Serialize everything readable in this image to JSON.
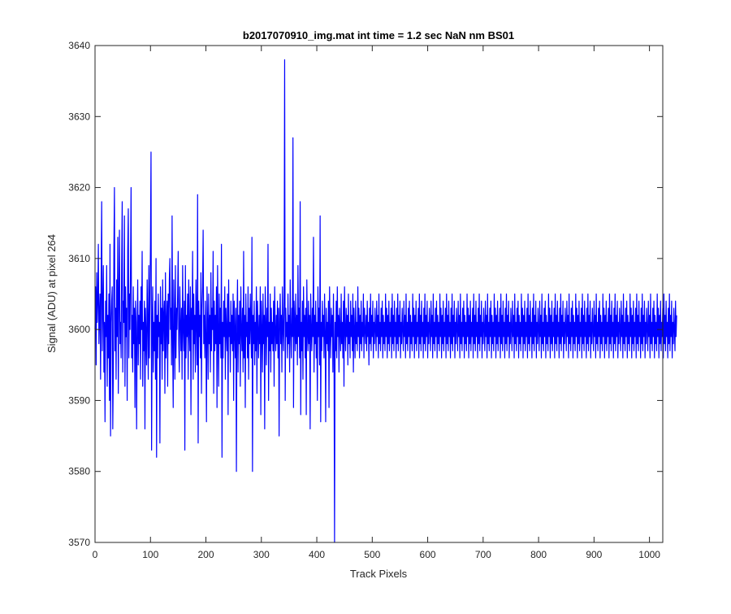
{
  "chart_data": {
    "type": "line",
    "title": "b2017070910_img.mat int time = 1.2 sec  NaN nm BS01",
    "xlabel": "Track Pixels",
    "ylabel": "Signal (ADU) at pixel 264",
    "xlim": [
      0,
      1024
    ],
    "ylim": [
      3570,
      3640
    ],
    "xticks": [
      0,
      100,
      200,
      300,
      400,
      500,
      600,
      700,
      800,
      900,
      1000
    ],
    "yticks": [
      3570,
      3580,
      3590,
      3600,
      3610,
      3620,
      3630,
      3640
    ],
    "grid": false,
    "line_color": "#0000ff",
    "series": [
      {
        "x_start": 0,
        "x_step": 1,
        "values": [
          3600,
          3606,
          3595,
          3608,
          3601,
          3604,
          3612,
          3598,
          3602,
          3605,
          3593,
          3607,
          3618,
          3597,
          3603,
          3609,
          3594,
          3601,
          3587,
          3604,
          3599,
          3609,
          3592,
          3602,
          3596,
          3605,
          3590,
          3612,
          3585,
          3601,
          3604,
          3606,
          3586,
          3594,
          3611,
          3620,
          3597,
          3603,
          3593,
          3607,
          3599,
          3613,
          3591,
          3605,
          3614,
          3598,
          3601,
          3596,
          3609,
          3618,
          3594,
          3604,
          3601,
          3616,
          3592,
          3606,
          3599,
          3603,
          3590,
          3611,
          3617,
          3596,
          3605,
          3600,
          3609,
          3620,
          3596,
          3602,
          3594,
          3606,
          3598,
          3603,
          3589,
          3604,
          3601,
          3586,
          3600,
          3607,
          3595,
          3602,
          3598,
          3604,
          3593,
          3606,
          3600,
          3611,
          3592,
          3601,
          3597,
          3604,
          3586,
          3603,
          3599,
          3595,
          3607,
          3601,
          3593,
          3609,
          3596,
          3604,
          3612,
          3625,
          3583,
          3600,
          3606,
          3594,
          3601,
          3597,
          3604,
          3593,
          3610,
          3582,
          3602,
          3596,
          3605,
          3599,
          3601,
          3584,
          3606,
          3598,
          3603,
          3593,
          3607,
          3597,
          3602,
          3604,
          3591,
          3608,
          3596,
          3601,
          3604,
          3592,
          3605,
          3598,
          3607,
          3610,
          3600,
          3603,
          3595,
          3616,
          3598,
          3589,
          3607,
          3601,
          3593,
          3609,
          3596,
          3603,
          3600,
          3605,
          3611,
          3598,
          3594,
          3606,
          3601,
          3597,
          3603,
          3593,
          3609,
          3600,
          3597,
          3604,
          3583,
          3609,
          3596,
          3602,
          3599,
          3605,
          3593,
          3607,
          3600,
          3597,
          3606,
          3588,
          3603,
          3600,
          3611,
          3593,
          3605,
          3598,
          3602,
          3594,
          3607,
          3601,
          3595,
          3619,
          3584,
          3604,
          3599,
          3602,
          3596,
          3608,
          3591,
          3603,
          3606,
          3614,
          3598,
          3602,
          3596,
          3604,
          3599,
          3587,
          3606,
          3601,
          3593,
          3605,
          3598,
          3602,
          3594,
          3608,
          3597,
          3603,
          3600,
          3611,
          3591,
          3604,
          3597,
          3602,
          3598,
          3606,
          3589,
          3609,
          3600,
          3592,
          3605,
          3598,
          3603,
          3596,
          3612,
          3582,
          3601,
          3596,
          3604,
          3599,
          3606,
          3593,
          3603,
          3600,
          3597,
          3605,
          3588,
          3607,
          3599,
          3601,
          3594,
          3604,
          3598,
          3602,
          3597,
          3605,
          3590,
          3604,
          3600,
          3596,
          3603,
          3580,
          3601,
          3607,
          3594,
          3602,
          3598,
          3604,
          3592,
          3606,
          3600,
          3597,
          3603,
          3594,
          3611,
          3596,
          3602,
          3589,
          3605,
          3599,
          3601,
          3596,
          3606,
          3593,
          3603,
          3598,
          3605,
          3600,
          3596,
          3613,
          3580,
          3602,
          3598,
          3604,
          3595,
          3601,
          3597,
          3606,
          3591,
          3604,
          3600,
          3596,
          3602,
          3598,
          3606,
          3588,
          3604,
          3600,
          3594,
          3605,
          3598,
          3602,
          3586,
          3606,
          3601,
          3595,
          3603,
          3599,
          3612,
          3590,
          3601,
          3597,
          3605,
          3594,
          3603,
          3598,
          3601,
          3597,
          3604,
          3592,
          3606,
          3600,
          3597,
          3602,
          3598,
          3604,
          3596,
          3603,
          3585,
          3601,
          3605,
          3598,
          3602,
          3594,
          3606,
          3600,
          3597,
          3604,
          3638,
          3590,
          3603,
          3599,
          3601,
          3596,
          3605,
          3598,
          3602,
          3594,
          3607,
          3600,
          3596,
          3603,
          3599,
          3627,
          3589,
          3604,
          3601,
          3597,
          3605,
          3598,
          3602,
          3595,
          3609,
          3599,
          3603,
          3596,
          3618,
          3588,
          3601,
          3597,
          3604,
          3593,
          3606,
          3599,
          3602,
          3596,
          3603,
          3588,
          3607,
          3600,
          3597,
          3604,
          3598,
          3602,
          3586,
          3605,
          3600,
          3597,
          3603,
          3599,
          3613,
          3594,
          3602,
          3598,
          3604,
          3596,
          3601,
          3590,
          3606,
          3599,
          3603,
          3595,
          3616,
          3587,
          3601,
          3597,
          3604,
          3599,
          3602,
          3596,
          3605,
          3600,
          3587,
          3603,
          3598,
          3601,
          3597,
          3604,
          3589,
          3606,
          3600,
          3596,
          3603,
          3599,
          3602,
          3594,
          3605,
          3598,
          3570,
          3601,
          3597,
          3604,
          3596,
          3606,
          3599,
          3602,
          3594,
          3603,
          3600,
          3597,
          3605,
          3598,
          3601,
          3596,
          3604,
          3592,
          3606,
          3600,
          3597,
          3603,
          3599,
          3602,
          3595,
          3605,
          3598,
          3601,
          3596,
          3604,
          3599,
          3602,
          3597,
          3605,
          3594,
          3603,
          3600,
          3596,
          3604,
          3598,
          3601,
          3597,
          3606,
          3599,
          3603,
          3596,
          3602,
          3598,
          3604,
          3597,
          3601,
          3599,
          3605,
          3596,
          3603,
          3600,
          3598,
          3602,
          3597,
          3604,
          3599,
          3601,
          3595,
          3603,
          3598,
          3605,
          3597,
          3602,
          3599,
          3604,
          3596,
          3601,
          3598,
          3603,
          3600,
          3597,
          3604,
          3599,
          3602,
          3596,
          3605,
          3598,
          3601,
          3597,
          3603,
          3599,
          3604,
          3596,
          3602,
          3598,
          3601,
          3597,
          3605,
          3599,
          3603,
          3596,
          3602,
          3598,
          3604,
          3597,
          3601,
          3599,
          3603,
          3596,
          3605,
          3598,
          3602,
          3597,
          3604,
          3599,
          3601,
          3596,
          3603,
          3598,
          3605,
          3597,
          3602,
          3599,
          3604,
          3596,
          3601,
          3598,
          3603,
          3600,
          3597,
          3604,
          3599,
          3602,
          3596,
          3605,
          3598,
          3601,
          3597,
          3603,
          3599,
          3604,
          3596,
          3602,
          3598,
          3601,
          3597,
          3605,
          3599,
          3603,
          3596,
          3602,
          3598,
          3604,
          3597,
          3601,
          3599,
          3603,
          3596,
          3605,
          3598,
          3602,
          3597,
          3604,
          3599,
          3601,
          3596,
          3603,
          3598,
          3605,
          3597,
          3602,
          3599,
          3604,
          3596,
          3601,
          3598,
          3603,
          3600,
          3597,
          3604,
          3599,
          3602,
          3596,
          3605,
          3598,
          3601,
          3597,
          3603,
          3599,
          3604,
          3596,
          3602,
          3598,
          3601,
          3597,
          3605,
          3599,
          3603,
          3596,
          3602,
          3598,
          3604,
          3597,
          3601,
          3599,
          3603,
          3596,
          3605,
          3598,
          3602,
          3597,
          3604,
          3599,
          3601,
          3596,
          3603,
          3598,
          3605,
          3597,
          3602,
          3599,
          3604,
          3596,
          3601,
          3598,
          3603,
          3600,
          3597,
          3604,
          3599,
          3602,
          3596,
          3605,
          3598,
          3601,
          3597,
          3603,
          3599,
          3604,
          3596,
          3602,
          3598,
          3601,
          3597,
          3605,
          3599,
          3603,
          3596,
          3602,
          3598,
          3604,
          3597,
          3601,
          3599,
          3603,
          3596,
          3605,
          3598,
          3602,
          3597,
          3604,
          3599,
          3601,
          3596,
          3603,
          3598,
          3605,
          3597,
          3602,
          3599,
          3604,
          3596,
          3601,
          3598,
          3603,
          3600,
          3597,
          3604,
          3599,
          3602,
          3596,
          3605,
          3598,
          3601,
          3597,
          3603,
          3599,
          3604,
          3596,
          3602,
          3598,
          3601,
          3597,
          3605,
          3599,
          3603,
          3596,
          3602,
          3598,
          3604,
          3597,
          3601,
          3599,
          3603,
          3596,
          3605,
          3598,
          3602,
          3597,
          3604,
          3599,
          3601,
          3596,
          3603,
          3598,
          3605,
          3597,
          3602,
          3599,
          3604,
          3596,
          3601,
          3598,
          3603,
          3600,
          3597,
          3604,
          3599,
          3602,
          3596,
          3605,
          3598,
          3601,
          3597,
          3603,
          3599,
          3604,
          3596,
          3602,
          3598,
          3601,
          3597,
          3605,
          3599,
          3603,
          3596,
          3602,
          3598,
          3604,
          3597,
          3601,
          3599,
          3603,
          3596,
          3605,
          3598,
          3602,
          3597,
          3604,
          3599,
          3601,
          3596,
          3603,
          3598,
          3605,
          3597,
          3602,
          3599,
          3604,
          3596,
          3601,
          3598,
          3603,
          3600,
          3597,
          3604,
          3599,
          3602,
          3596,
          3605,
          3598,
          3601,
          3597,
          3603,
          3599,
          3604,
          3596,
          3602,
          3598,
          3601,
          3597,
          3605,
          3599,
          3603,
          3596,
          3602,
          3598,
          3604,
          3597,
          3601,
          3599,
          3603,
          3596,
          3605,
          3598,
          3602,
          3597,
          3604,
          3599,
          3601,
          3596,
          3603,
          3598,
          3605,
          3597,
          3602,
          3599,
          3604,
          3596,
          3601,
          3598,
          3603,
          3600,
          3597,
          3604,
          3599,
          3602,
          3596,
          3605,
          3598,
          3601,
          3597,
          3603,
          3599,
          3604,
          3596,
          3602,
          3598,
          3601,
          3597,
          3605,
          3599,
          3603,
          3596,
          3602,
          3598,
          3604,
          3597,
          3601,
          3599,
          3603,
          3596,
          3605,
          3598,
          3602,
          3597,
          3604,
          3599,
          3601,
          3596,
          3603,
          3598,
          3605,
          3597,
          3602,
          3599,
          3604,
          3596,
          3601,
          3598,
          3603,
          3600,
          3597,
          3604,
          3599,
          3602,
          3596,
          3605,
          3598,
          3601,
          3597,
          3603,
          3599,
          3604,
          3596,
          3602,
          3598,
          3601,
          3597,
          3605,
          3599,
          3603,
          3596,
          3602,
          3598,
          3604,
          3597,
          3601,
          3599,
          3603,
          3596,
          3605,
          3598,
          3602,
          3597,
          3604,
          3599,
          3601,
          3596,
          3603,
          3598,
          3605,
          3597,
          3602,
          3599,
          3604,
          3596,
          3601,
          3598,
          3603,
          3600,
          3597,
          3604,
          3599,
          3602,
          3596,
          3605,
          3598,
          3601,
          3597,
          3603,
          3599,
          3604,
          3596,
          3602,
          3598,
          3601,
          3597,
          3605,
          3599,
          3603,
          3596,
          3602,
          3598,
          3604,
          3597,
          3601,
          3599,
          3603,
          3596,
          3605,
          3598,
          3602,
          3597,
          3604,
          3599,
          3601,
          3596,
          3603,
          3598,
          3605,
          3597,
          3602,
          3599,
          3604,
          3596,
          3601,
          3598,
          3603,
          3600,
          3597,
          3604,
          3599,
          3602,
          3596,
          3605,
          3598,
          3601,
          3597,
          3603,
          3599,
          3604,
          3596,
          3602,
          3598,
          3601,
          3597,
          3605,
          3599,
          3603,
          3596,
          3602,
          3598,
          3604,
          3597,
          3601,
          3599,
          3603,
          3596,
          3605,
          3598,
          3602,
          3597,
          3604,
          3599,
          3601,
          3596,
          3603,
          3598,
          3605,
          3597,
          3602,
          3599,
          3604,
          3596,
          3601,
          3598,
          3603,
          3600,
          3597,
          3604,
          3599,
          3602
        ]
      }
    ]
  }
}
